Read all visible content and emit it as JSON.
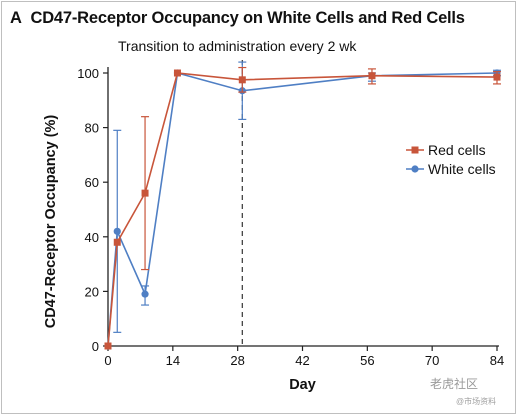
{
  "chart_data": {
    "type": "line",
    "panel_label": "A",
    "title": "CD47-Receptor Occupancy on White Cells and Red Cells",
    "annotation": "Transition to administration every 2 wk",
    "annotation_x": 29,
    "xlabel": "Day",
    "ylabel": "CD47-Receptor Occupancy (%)",
    "xlim": [
      0,
      84
    ],
    "ylim": [
      0,
      100
    ],
    "xticks": [
      0,
      14,
      28,
      42,
      56,
      70,
      84
    ],
    "yticks": [
      0,
      20,
      40,
      60,
      80,
      100
    ],
    "grid": false,
    "legend_position": "right",
    "series": [
      {
        "name": "Red cells",
        "color": "#c8553a",
        "marker": "square",
        "x": [
          0,
          2,
          8,
          15,
          29,
          57,
          84
        ],
        "y": [
          0,
          38,
          56,
          100,
          97.5,
          99,
          98.5
        ],
        "err_low": [
          0,
          38,
          28,
          100,
          93,
          96,
          96
        ],
        "err_high": [
          0,
          38,
          84,
          100,
          102,
          101.5,
          100.5
        ]
      },
      {
        "name": "White cells",
        "color": "#4f7fc4",
        "marker": "circle",
        "x": [
          0,
          2,
          8,
          15,
          29,
          57,
          84
        ],
        "y": [
          0,
          42,
          19,
          100,
          93.5,
          99,
          100
        ],
        "err_low": [
          0,
          5,
          15,
          100,
          83,
          97,
          99
        ],
        "err_high": [
          0,
          79,
          22,
          100,
          104,
          100,
          101
        ]
      }
    ]
  },
  "watermark": {
    "text": "老虎社区",
    "subtext": "@市场资料"
  }
}
